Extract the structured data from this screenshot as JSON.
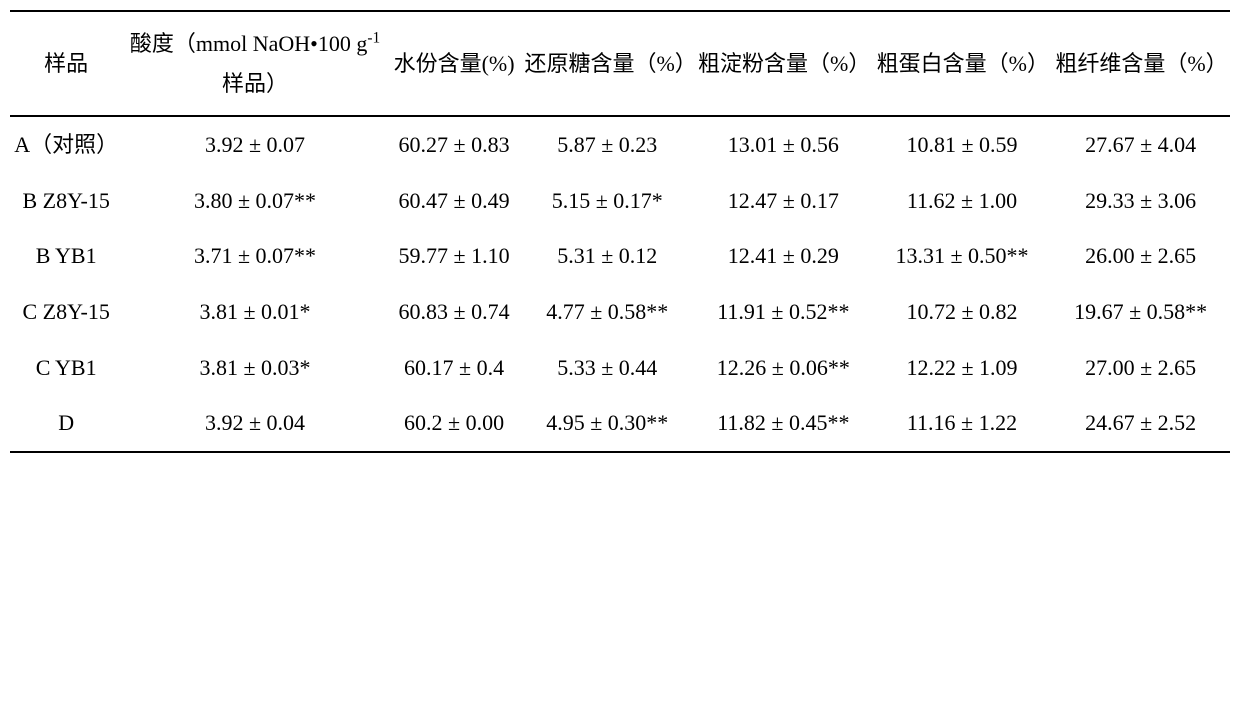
{
  "table": {
    "headers": {
      "sample": "样品",
      "acidity_html": "酸度（mmol NaOH•100 g<span class=\"sup\">-1</span> 样品）",
      "water": "水份含量(%)",
      "sugar": "还原糖含量（%）",
      "starch": "粗淀粉含量（%）",
      "protein": "粗蛋白含量（%）",
      "fiber": "粗纤维含量（%）"
    },
    "rows": [
      {
        "sample": "A（对照）",
        "acidity": "3.92 ± 0.07",
        "water": "60.27 ± 0.83",
        "sugar": "5.87 ± 0.23",
        "starch": "13.01 ± 0.56",
        "protein": "10.81 ± 0.59",
        "fiber": "27.67 ± 4.04"
      },
      {
        "sample": "B Z8Y-15",
        "acidity": "3.80 ± 0.07**",
        "water": "60.47 ± 0.49",
        "sugar": "5.15 ± 0.17*",
        "starch": "12.47 ± 0.17",
        "protein": "11.62 ± 1.00",
        "fiber": "29.33 ± 3.06"
      },
      {
        "sample": "B YB1",
        "acidity": "3.71 ± 0.07**",
        "water": "59.77 ± 1.10",
        "sugar": "5.31 ± 0.12",
        "starch": "12.41 ± 0.29",
        "protein": "13.31 ± 0.50**",
        "fiber": "26.00 ± 2.65"
      },
      {
        "sample": "C Z8Y-15",
        "acidity": "3.81 ± 0.01*",
        "water": "60.83 ± 0.74",
        "sugar": "4.77 ± 0.58**",
        "starch": "11.91 ± 0.52**",
        "protein": "10.72 ± 0.82",
        "fiber": "19.67 ± 0.58**"
      },
      {
        "sample": "C YB1",
        "acidity": "3.81 ± 0.03*",
        "water": "60.17 ± 0.4",
        "sugar": "5.33 ± 0.44",
        "starch": "12.26 ± 0.06**",
        "protein": "12.22 ± 1.09",
        "fiber": "27.00 ± 2.65"
      },
      {
        "sample": "D",
        "acidity": "3.92 ± 0.04",
        "water": "60.2 ± 0.00",
        "sugar": "4.95 ± 0.30**",
        "starch": "11.82 ± 0.45**",
        "protein": "11.16 ± 1.22",
        "fiber": "24.67 ± 2.52"
      }
    ]
  }
}
